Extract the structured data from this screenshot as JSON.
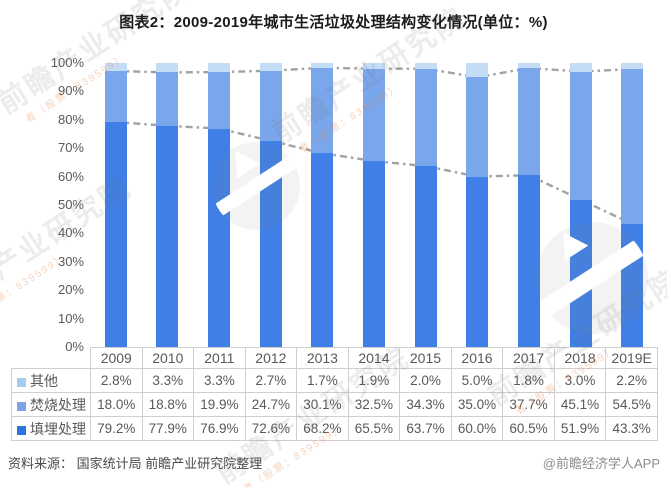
{
  "title": "图表2：2009-2019年城市生活垃圾处理结构变化情况(单位：%)",
  "chart_data": {
    "type": "bar",
    "subtype": "stacked-100-percent-column",
    "title": "图表2：2009-2019年城市生活垃圾处理结构变化情况(单位：%)",
    "categories": [
      "2009",
      "2010",
      "2011",
      "2012",
      "2013",
      "2014",
      "2015",
      "2016",
      "2017",
      "2018",
      "2019E"
    ],
    "series_bottom_up": [
      {
        "key": "landfill",
        "name": "填埋处理",
        "color": "#3F7FE6",
        "values": [
          79.2,
          77.9,
          76.9,
          72.6,
          68.2,
          65.5,
          63.7,
          60.0,
          60.5,
          51.9,
          43.3
        ]
      },
      {
        "key": "incineration",
        "name": "焚烧处理",
        "color": "#7AA7EC",
        "values": [
          18.0,
          18.8,
          19.9,
          24.7,
          30.1,
          32.5,
          34.3,
          35.0,
          37.7,
          45.1,
          54.5
        ]
      },
      {
        "key": "other",
        "name": "其他",
        "color": "#C5DCF7",
        "values": [
          2.8,
          3.3,
          3.3,
          2.7,
          1.7,
          1.9,
          2.0,
          5.0,
          1.8,
          3.0,
          2.2
        ]
      }
    ],
    "connector_lines": {
      "description": "dash-dot series lines joining tops of 填埋处理 and 焚烧处理 segments between bars",
      "color": "#A2A2A2",
      "dash_style": "dash-dot"
    },
    "ylim": [
      0,
      100
    ],
    "ytick_step": 10,
    "ytick_suffix": "%",
    "grid": false,
    "legend_position": "table-left-column"
  },
  "table": {
    "header_years": [
      "2009",
      "2010",
      "2011",
      "2012",
      "2013",
      "2014",
      "2015",
      "2016",
      "2017",
      "2018",
      "2019E"
    ],
    "rows": [
      {
        "key": "other",
        "label": "其他",
        "swatch": "#A9CBEE",
        "values": [
          "2.8%",
          "3.3%",
          "3.3%",
          "2.7%",
          "1.7%",
          "1.9%",
          "2.0%",
          "5.0%",
          "1.8%",
          "3.0%",
          "2.2%"
        ]
      },
      {
        "key": "incineration",
        "label": "焚烧处理",
        "swatch": "#7CA4E6",
        "values": [
          "18.0%",
          "18.8%",
          "19.9%",
          "24.7%",
          "30.1%",
          "32.5%",
          "34.3%",
          "35.0%",
          "37.7%",
          "45.1%",
          "54.5%"
        ]
      },
      {
        "key": "landfill",
        "label": "填埋处理",
        "swatch": "#2F74DC",
        "values": [
          "79.2%",
          "77.9%",
          "76.9%",
          "72.6%",
          "68.2%",
          "65.5%",
          "63.7%",
          "60.0%",
          "60.5%",
          "51.9%",
          "43.3%"
        ]
      }
    ]
  },
  "footer": {
    "source": "资料来源： 国家统计局 前瞻产业研究院整理",
    "credit": "@前瞻经济学人APP"
  },
  "watermark": {
    "text": "前瞻产业研究院",
    "subtext": "者（股票：839599）",
    "logo": "qianzhan-camera-logo"
  }
}
